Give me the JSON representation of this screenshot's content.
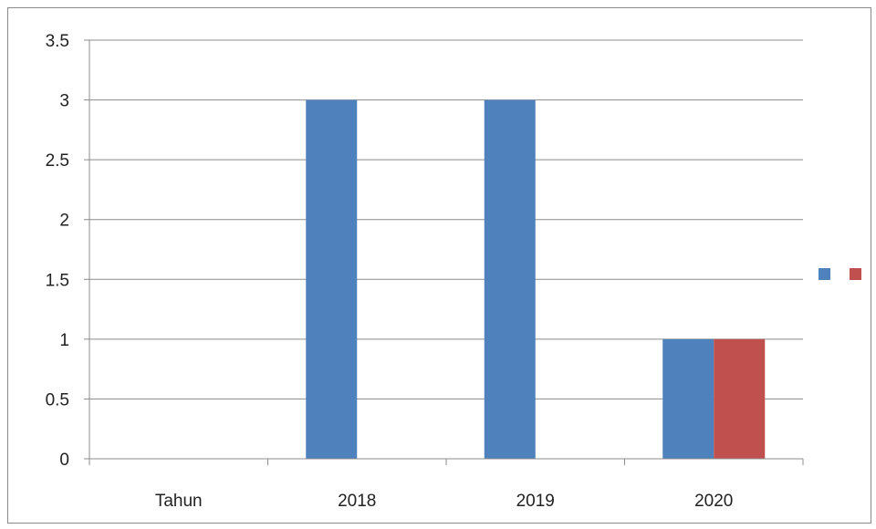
{
  "chart_data": {
    "type": "bar",
    "categories": [
      "Tahun",
      "2018",
      "2019",
      "2020"
    ],
    "series": [
      {
        "values": [
          0,
          3,
          3,
          1
        ],
        "color": "#4f81bd"
      },
      {
        "values": [
          0,
          0,
          0,
          1
        ],
        "color": "#c0504d"
      }
    ],
    "yticks": [
      "0",
      "0.5",
      "1",
      "1.5",
      "2",
      "2.5",
      "3",
      "3.5"
    ],
    "ylim": [
      0,
      3.5
    ],
    "grid": true,
    "legend": "right"
  }
}
